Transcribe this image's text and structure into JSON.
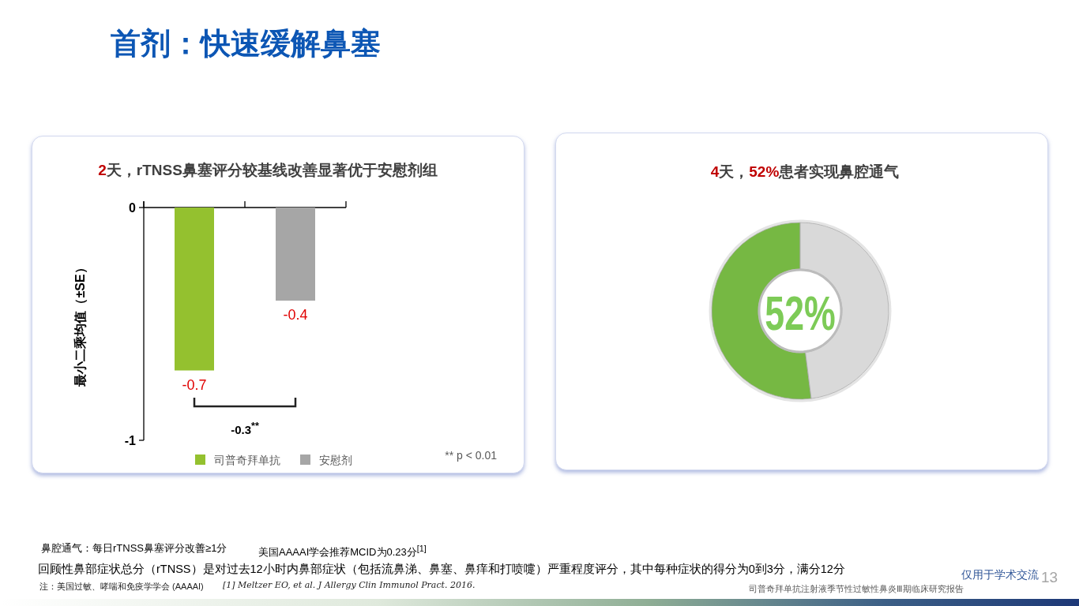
{
  "chart_data": [
    {
      "type": "other",
      "title": "首剂：快速缓解鼻塞"
    },
    {
      "type": "bar",
      "title": "**2**天，rTNSS鼻塞评分较基线改善显著优于安慰剂组",
      "ylabel": "最小二乘均值（±SE）",
      "categories": [
        null,
        null
      ],
      "series": [
        {
          "name": "司普奇拜单抗",
          "color": "#94c12f",
          "values": [
            -0.7,
            null
          ]
        },
        {
          "name": "安慰剂",
          "color": "#a6a6a6",
          "values": [
            null,
            -0.4
          ]
        }
      ],
      "ylim": [
        -1,
        0
      ],
      "yticks": [
        -1,
        0
      ],
      "data_labels": true,
      "legend": "bottom",
      "annotations": [
        "-0.3$^{**}$",
        "** p < 0.01"
      ]
    },
    {
      "type": "donut",
      "title": "**4**天，**52%**患者实现鼻腔通气",
      "categories": [
        null,
        null
      ],
      "values": [
        52,
        48
      ],
      "colors": [
        "#76b843",
        "#d9d9d9"
      ],
      "value_labels": [
        "52%",
        null
      ]
    },
    {
      "type": "other",
      "annotations": [
        "鼻腔通气：每日rTNSS鼻塞评分改善≥1分",
        "美国AAAAI学会推荐MCID为0.23分$^{[1]}$",
        "回顾性鼻部症状总分（rTNSS）是对过去12小时内鼻部症状（包括流鼻涕、鼻塞、鼻痒和打喷嚏）严重程度评分，其中每种症状的得分为0到3分，满分12分",
        "注：美国过敏、哮喘和免疫学学会 (AAAAI)",
        "[1] Meltzer EO, et al. J Allergy Clin Immunol Pract. 2016.",
        "仅用于学术交流",
        "13",
        "司普奇拜单抗注射液季节性过敏性鼻炎Ⅲ期临床研究报告"
      ]
    }
  ]
}
